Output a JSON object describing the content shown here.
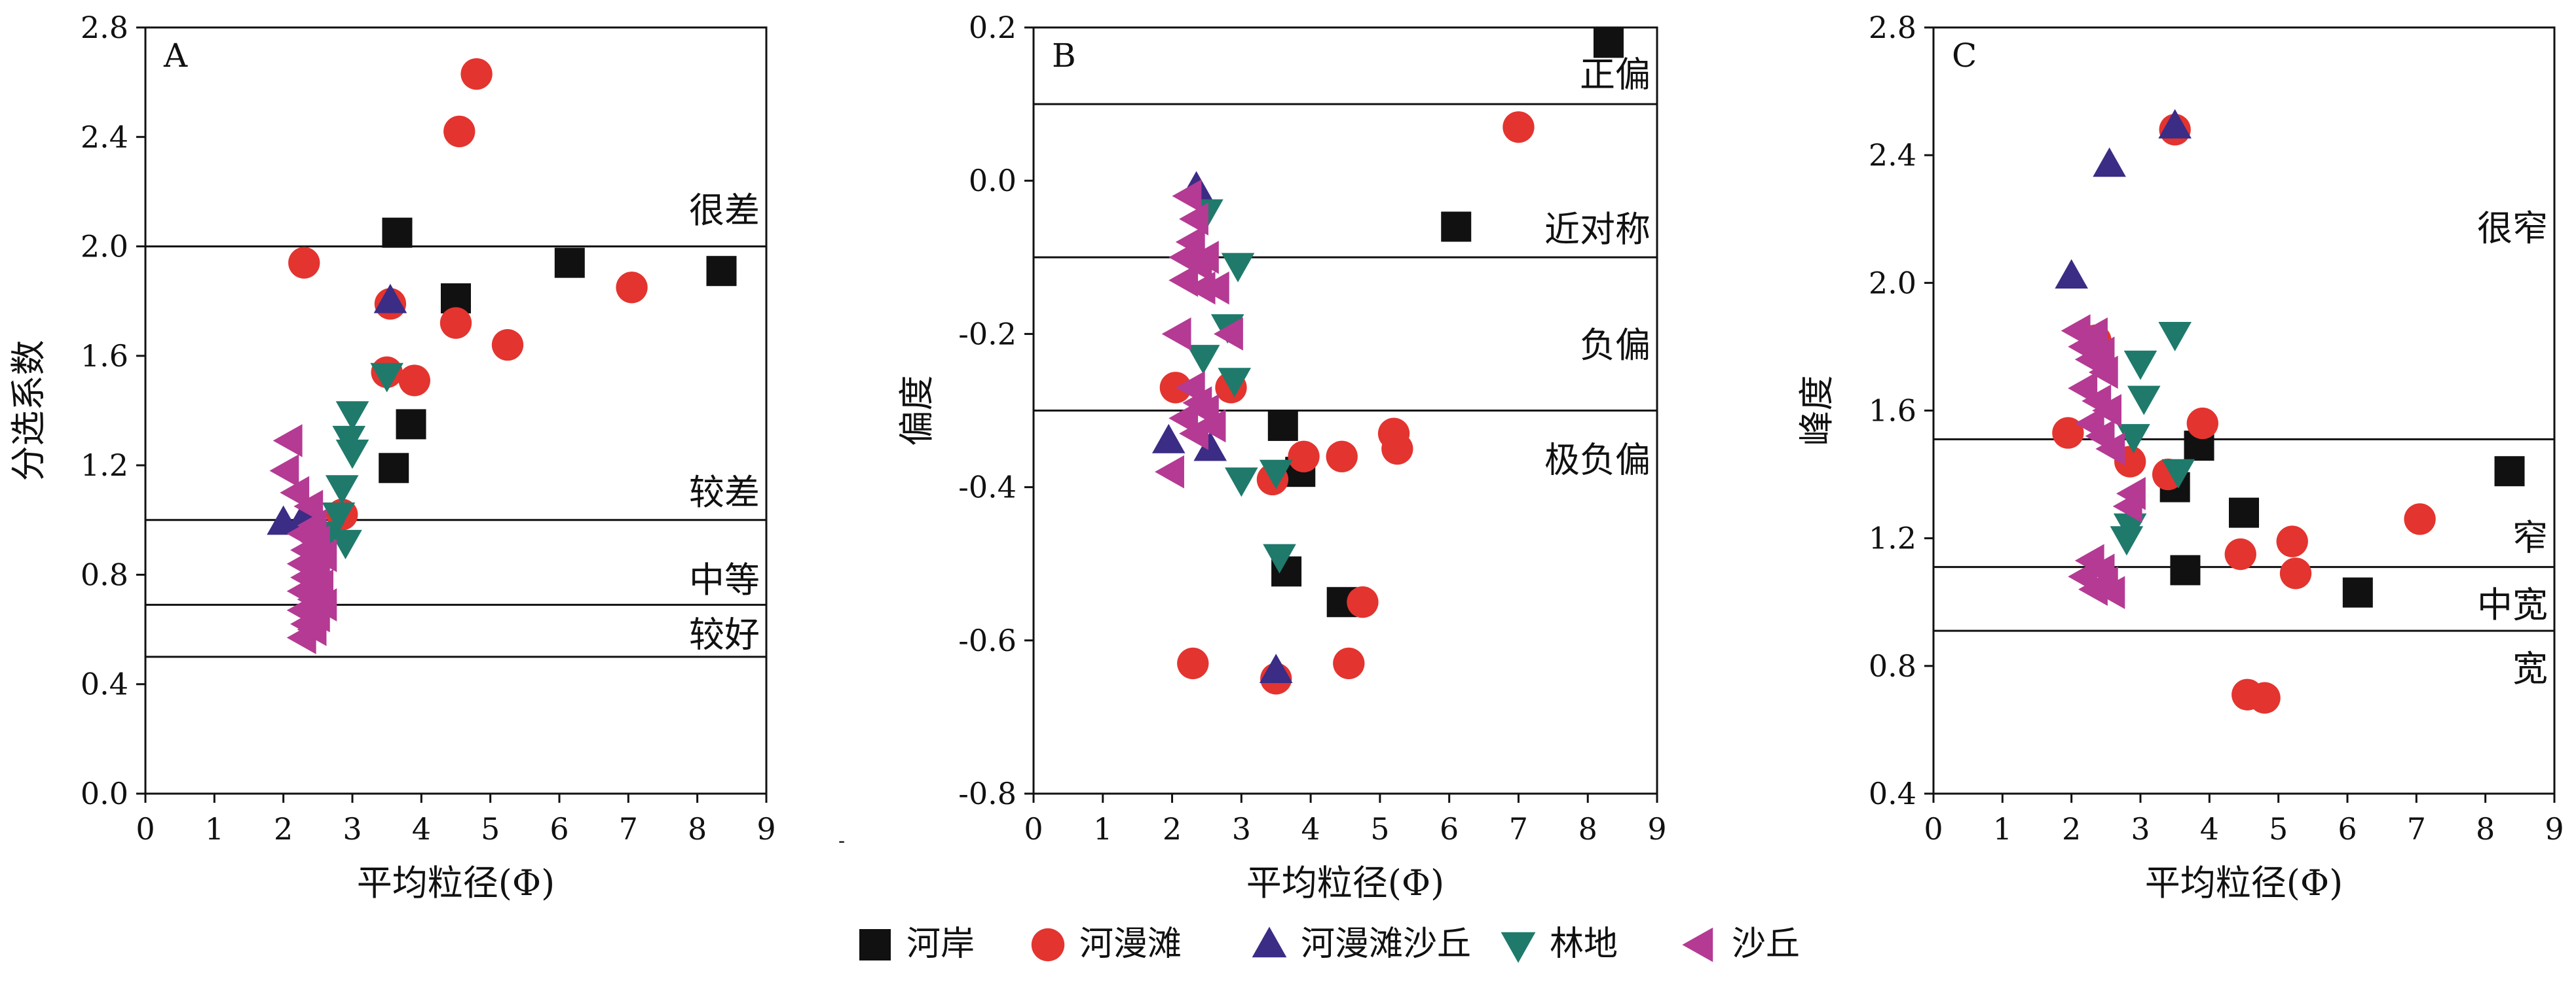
{
  "chart_data": [
    {
      "type": "scatter",
      "panel_label": "A",
      "xlabel": "平均粒径(Φ)",
      "ylabel": "分选系数",
      "xlim": [
        0,
        9
      ],
      "ylim": [
        0,
        2.8
      ],
      "xticks": [
        "0",
        "1",
        "2",
        "3",
        "4",
        "5",
        "6",
        "7",
        "8",
        "9"
      ],
      "yticks": [
        "0.0",
        "0.4",
        "0.8",
        "1.2",
        "1.6",
        "2.0",
        "2.4",
        "2.8"
      ],
      "lines": [
        {
          "y": 2.0,
          "label": "很差",
          "label_y": 2.13
        },
        {
          "y": 1.0,
          "label": "较差",
          "label_y": 1.1
        },
        {
          "y": 0.69,
          "label": "中等",
          "label_y": 0.78
        },
        {
          "y": 0.5,
          "label": "较好",
          "label_y": 0.58
        }
      ],
      "series": [
        {
          "name": "河岸",
          "points": [
            [
              3.65,
              2.05
            ],
            [
              4.5,
              1.81
            ],
            [
              6.15,
              1.94
            ],
            [
              8.35,
              1.91
            ],
            [
              3.85,
              1.35
            ],
            [
              3.6,
              1.19
            ]
          ]
        },
        {
          "name": "河漫滩",
          "points": [
            [
              4.8,
              2.63
            ],
            [
              4.55,
              2.42
            ],
            [
              2.3,
              1.94
            ],
            [
              7.05,
              1.85
            ],
            [
              3.55,
              1.79
            ],
            [
              4.5,
              1.72
            ],
            [
              5.25,
              1.64
            ],
            [
              3.5,
              1.54
            ],
            [
              3.9,
              1.51
            ],
            [
              2.85,
              1.02
            ]
          ]
        },
        {
          "name": "河漫滩沙丘",
          "points": [
            [
              3.55,
              1.8
            ],
            [
              2.0,
              0.99
            ],
            [
              2.3,
              1.01
            ]
          ]
        },
        {
          "name": "林地",
          "points": [
            [
              3.5,
              1.53
            ],
            [
              3.0,
              1.39
            ],
            [
              2.95,
              1.3
            ],
            [
              3.0,
              1.25
            ],
            [
              2.85,
              1.12
            ],
            [
              2.8,
              1.02
            ],
            [
              2.65,
              0.95
            ],
            [
              2.9,
              0.92
            ]
          ]
        },
        {
          "name": "沙丘",
          "points": [
            [
              2.1,
              1.29
            ],
            [
              2.05,
              1.18
            ],
            [
              2.2,
              1.1
            ],
            [
              2.4,
              1.05
            ],
            [
              2.45,
              0.98
            ],
            [
              2.3,
              0.95
            ],
            [
              2.5,
              0.92
            ],
            [
              2.35,
              0.89
            ],
            [
              2.6,
              0.87
            ],
            [
              2.3,
              0.84
            ],
            [
              2.5,
              0.82
            ],
            [
              2.35,
              0.79
            ],
            [
              2.55,
              0.76
            ],
            [
              2.3,
              0.74
            ],
            [
              2.45,
              0.71
            ],
            [
              2.6,
              0.69
            ],
            [
              2.3,
              0.67
            ],
            [
              2.5,
              0.65
            ],
            [
              2.35,
              0.62
            ],
            [
              2.45,
              0.6
            ],
            [
              2.3,
              0.57
            ]
          ]
        }
      ]
    },
    {
      "type": "scatter",
      "panel_label": "B",
      "xlabel": "平均粒径(Φ)",
      "ylabel": "偏度",
      "xlim": [
        0,
        9
      ],
      "ylim": [
        -0.8,
        0.2
      ],
      "xticks": [
        "0",
        "1",
        "2",
        "3",
        "4",
        "5",
        "6",
        "7",
        "8",
        "9"
      ],
      "yticks": [
        "-0.8",
        "-0.6",
        "-0.4",
        "-0.2",
        "0.0",
        "0.2"
      ],
      "lines": [
        {
          "y": 0.1,
          "label": "正偏",
          "label_y": 0.138
        },
        {
          "y": -0.1,
          "label": "近对称",
          "label_y": -0.064
        },
        {
          "y": -0.3,
          "label": "",
          "label_y": -0.3
        }
      ],
      "region_labels": [
        {
          "label": "负偏",
          "y": -0.215
        },
        {
          "label": "极负偏",
          "y": -0.365
        }
      ],
      "series": [
        {
          "name": "河岸",
          "points": [
            [
              8.3,
              0.18
            ],
            [
              6.1,
              -0.06
            ],
            [
              3.6,
              -0.32
            ],
            [
              3.85,
              -0.38
            ],
            [
              3.65,
              -0.51
            ],
            [
              4.45,
              -0.55
            ]
          ]
        },
        {
          "name": "河漫滩",
          "points": [
            [
              7.0,
              0.07
            ],
            [
              2.05,
              -0.27
            ],
            [
              2.85,
              -0.27
            ],
            [
              3.9,
              -0.36
            ],
            [
              4.45,
              -0.36
            ],
            [
              5.2,
              -0.33
            ],
            [
              5.25,
              -0.35
            ],
            [
              3.45,
              -0.39
            ],
            [
              4.75,
              -0.55
            ],
            [
              2.3,
              -0.63
            ],
            [
              4.55,
              -0.63
            ],
            [
              3.5,
              -0.65
            ]
          ]
        },
        {
          "name": "河漫滩沙丘",
          "points": [
            [
              2.35,
              -0.01
            ],
            [
              1.95,
              -0.34
            ],
            [
              2.55,
              -0.35
            ],
            [
              3.5,
              -0.64
            ]
          ]
        },
        {
          "name": "林地",
          "points": [
            [
              2.5,
              -0.04
            ],
            [
              2.95,
              -0.11
            ],
            [
              2.8,
              -0.19
            ],
            [
              2.45,
              -0.23
            ],
            [
              2.9,
              -0.26
            ],
            [
              3.5,
              -0.38
            ],
            [
              3.0,
              -0.39
            ],
            [
              3.55,
              -0.49
            ]
          ]
        },
        {
          "name": "沙丘",
          "points": [
            [
              2.25,
              -0.02
            ],
            [
              2.35,
              -0.05
            ],
            [
              2.3,
              -0.08
            ],
            [
              2.2,
              -0.1
            ],
            [
              2.4,
              -0.11
            ],
            [
              2.5,
              -0.1
            ],
            [
              2.2,
              -0.13
            ],
            [
              2.45,
              -0.14
            ],
            [
              2.65,
              -0.14
            ],
            [
              2.85,
              -0.2
            ],
            [
              2.1,
              -0.2
            ],
            [
              2.3,
              -0.27
            ],
            [
              2.4,
              -0.29
            ],
            [
              2.5,
              -0.3
            ],
            [
              2.2,
              -0.31
            ],
            [
              2.6,
              -0.32
            ],
            [
              2.35,
              -0.33
            ],
            [
              2.0,
              -0.38
            ]
          ]
        }
      ]
    },
    {
      "type": "scatter",
      "panel_label": "C",
      "xlabel": "平均粒径(Φ)",
      "ylabel": "峰度",
      "xlim": [
        0,
        9
      ],
      "ylim": [
        0.4,
        2.8
      ],
      "xticks": [
        "0",
        "1",
        "2",
        "3",
        "4",
        "5",
        "6",
        "7",
        "8",
        "9"
      ],
      "yticks": [
        "0.4",
        "0.8",
        "1.2",
        "1.6",
        "2.0",
        "2.4",
        "2.8"
      ],
      "lines": [
        {
          "y": 1.51,
          "label": "",
          "label_y": 1.51
        },
        {
          "y": 1.11,
          "label": "窄",
          "label_y": 1.2
        },
        {
          "y": 0.91,
          "label": "中宽",
          "label_y": 0.99
        }
      ],
      "region_labels": [
        {
          "label": "很窄",
          "y": 2.17
        },
        {
          "label": "宽",
          "y": 0.79
        }
      ],
      "series": [
        {
          "name": "河岸",
          "points": [
            [
              8.35,
              1.41
            ],
            [
              3.85,
              1.49
            ],
            [
              3.5,
              1.36
            ],
            [
              4.5,
              1.28
            ],
            [
              3.65,
              1.1
            ],
            [
              6.15,
              1.03
            ]
          ]
        },
        {
          "name": "河漫滩",
          "points": [
            [
              3.5,
              2.48
            ],
            [
              2.35,
              1.82
            ],
            [
              1.95,
              1.53
            ],
            [
              2.85,
              1.44
            ],
            [
              3.4,
              1.4
            ],
            [
              3.9,
              1.56
            ],
            [
              5.2,
              1.19
            ],
            [
              7.05,
              1.26
            ],
            [
              4.45,
              1.15
            ],
            [
              5.25,
              1.09
            ],
            [
              4.55,
              0.71
            ],
            [
              4.8,
              0.7
            ]
          ]
        },
        {
          "name": "河漫滩沙丘",
          "points": [
            [
              3.5,
              2.49
            ],
            [
              2.55,
              2.37
            ],
            [
              2.0,
              2.02
            ]
          ]
        },
        {
          "name": "林地",
          "points": [
            [
              3.5,
              1.84
            ],
            [
              3.0,
              1.75
            ],
            [
              3.05,
              1.64
            ],
            [
              2.9,
              1.52
            ],
            [
              3.55,
              1.41
            ],
            [
              2.85,
              1.24
            ],
            [
              2.8,
              1.2
            ]
          ]
        },
        {
          "name": "沙丘",
          "points": [
            [
              2.1,
              1.85
            ],
            [
              2.35,
              1.84
            ],
            [
              2.2,
              1.8
            ],
            [
              2.45,
              1.78
            ],
            [
              2.3,
              1.76
            ],
            [
              2.5,
              1.72
            ],
            [
              2.2,
              1.67
            ],
            [
              2.4,
              1.63
            ],
            [
              2.55,
              1.6
            ],
            [
              2.3,
              1.56
            ],
            [
              2.45,
              1.52
            ],
            [
              2.6,
              1.48
            ],
            [
              2.9,
              1.34
            ],
            [
              2.85,
              1.3
            ],
            [
              2.3,
              1.13
            ],
            [
              2.45,
              1.1
            ],
            [
              2.2,
              1.08
            ],
            [
              2.5,
              1.06
            ],
            [
              2.35,
              1.04
            ],
            [
              2.6,
              1.03
            ]
          ]
        }
      ]
    }
  ],
  "legend": [
    {
      "name": "河岸",
      "marker": "square",
      "color": "#111111"
    },
    {
      "name": "河漫滩",
      "marker": "circle",
      "color": "#e3342f"
    },
    {
      "name": "河漫滩沙丘",
      "marker": "triangle-up",
      "color": "#3b2c85"
    },
    {
      "name": "林地",
      "marker": "triangle-down",
      "color": "#1f7a6b"
    },
    {
      "name": "沙丘",
      "marker": "triangle-left",
      "color": "#b43a94"
    }
  ],
  "stray_mark": "-"
}
